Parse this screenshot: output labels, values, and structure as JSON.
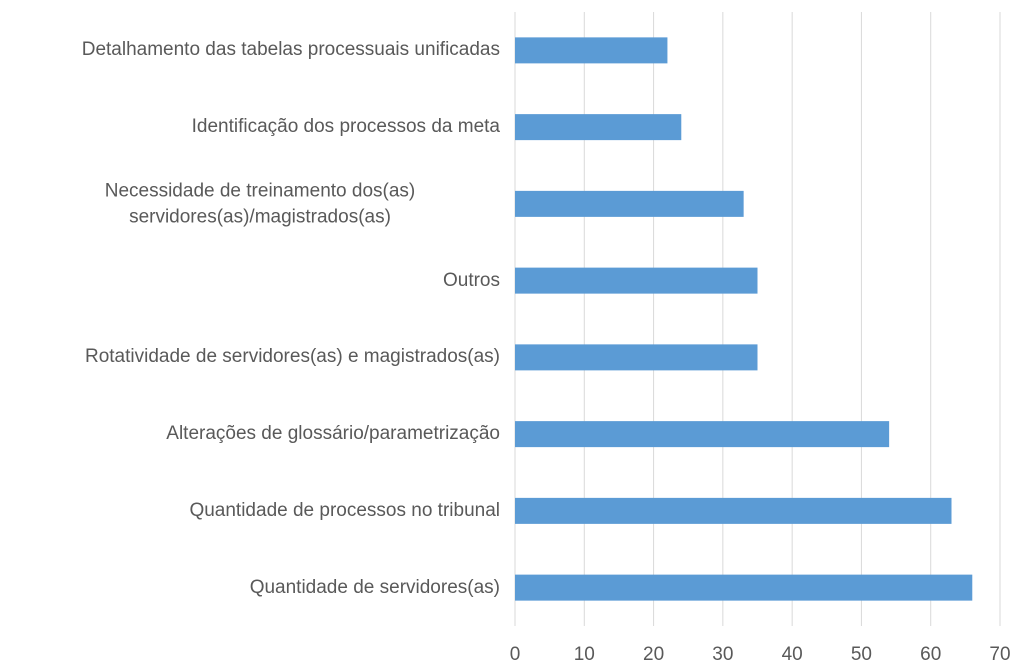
{
  "chart_data": {
    "type": "bar",
    "orientation": "horizontal",
    "categories": [
      "Detalhamento das tabelas processuais unificadas",
      "Identificação dos processos da meta",
      "Necessidade de treinamento dos(as) servidores(as)/magistrados(as)",
      "Outros",
      "Rotatividade de servidores(as) e magistrados(as)",
      "Alterações de glossário/parametrização",
      "Quantidade de processos no tribunal",
      "Quantidade de servidores(as)"
    ],
    "values": [
      22,
      24,
      33,
      35,
      35,
      54,
      63,
      66
    ],
    "color": "#5b9bd5",
    "xlim": [
      0,
      70
    ],
    "xticks": [
      0,
      10,
      20,
      30,
      40,
      50,
      60,
      70
    ],
    "grid": true
  }
}
